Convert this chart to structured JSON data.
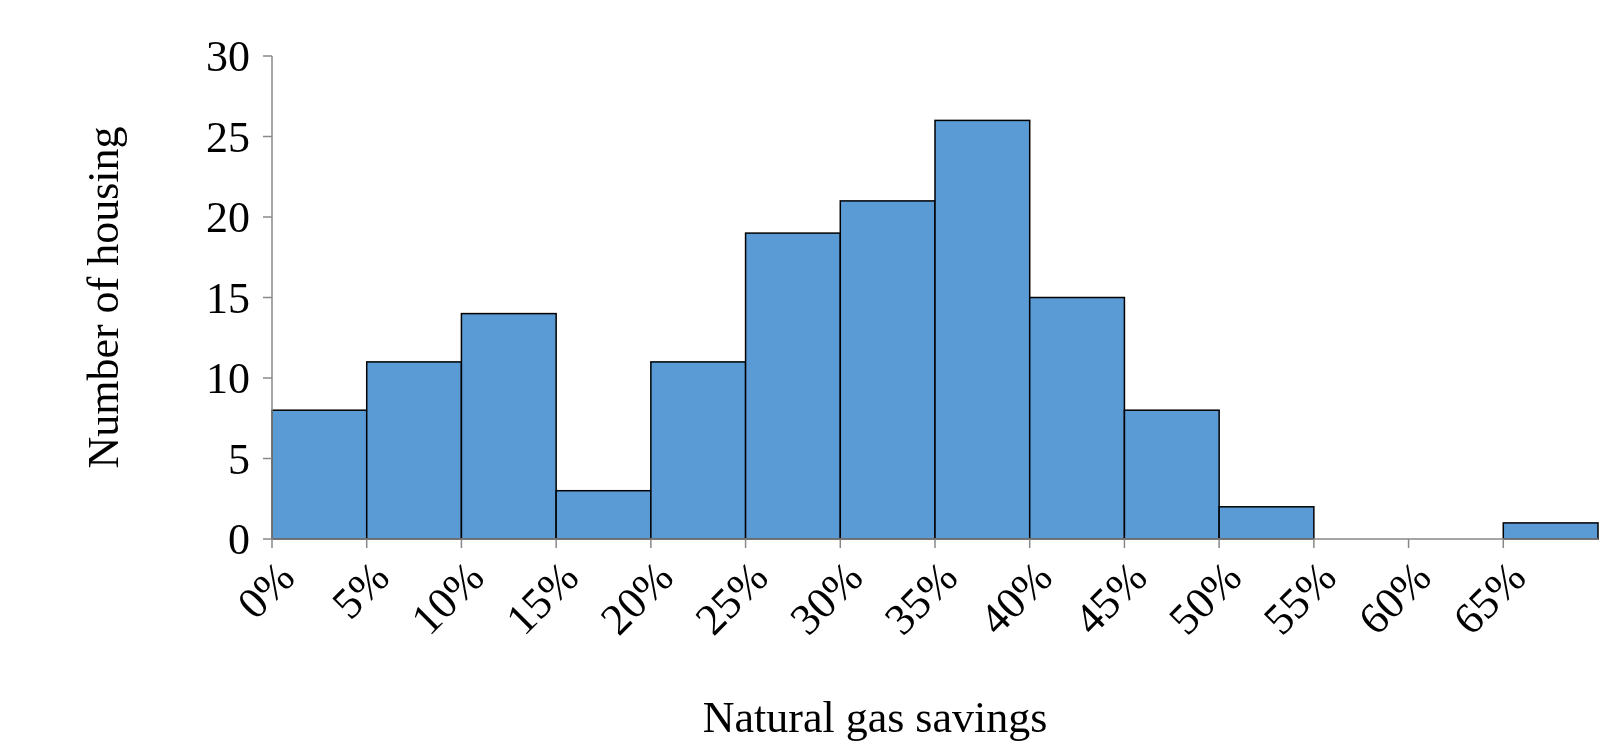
{
  "chart_data": {
    "type": "histogram",
    "xlabel": "Natural gas savings",
    "ylabel": "Number of housing",
    "bins": [
      0,
      5,
      10,
      15,
      20,
      25,
      30,
      35,
      40,
      45,
      50,
      55,
      60,
      65,
      70
    ],
    "values": [
      8,
      11,
      14,
      3,
      11,
      19,
      21,
      26,
      15,
      8,
      2,
      0,
      0,
      1
    ],
    "color": "#5b9bd5",
    "xlim": [
      0,
      70
    ],
    "xticks": [
      {
        "value": 0,
        "label": "0%"
      },
      {
        "value": 5,
        "label": "5%"
      },
      {
        "value": 10,
        "label": "10%"
      },
      {
        "value": 15,
        "label": "15%"
      },
      {
        "value": 20,
        "label": "20%"
      },
      {
        "value": 25,
        "label": "25%"
      },
      {
        "value": 30,
        "label": "30%"
      },
      {
        "value": 35,
        "label": "35%"
      },
      {
        "value": 40,
        "label": "40%"
      },
      {
        "value": 45,
        "label": "45%"
      },
      {
        "value": 50,
        "label": "50%"
      },
      {
        "value": 55,
        "label": "55%"
      },
      {
        "value": 60,
        "label": "60%"
      },
      {
        "value": 65,
        "label": "65%"
      }
    ],
    "ylim": [
      0,
      30
    ],
    "yticks": [
      0,
      5,
      10,
      15,
      20,
      25,
      30
    ],
    "grid": false
  }
}
